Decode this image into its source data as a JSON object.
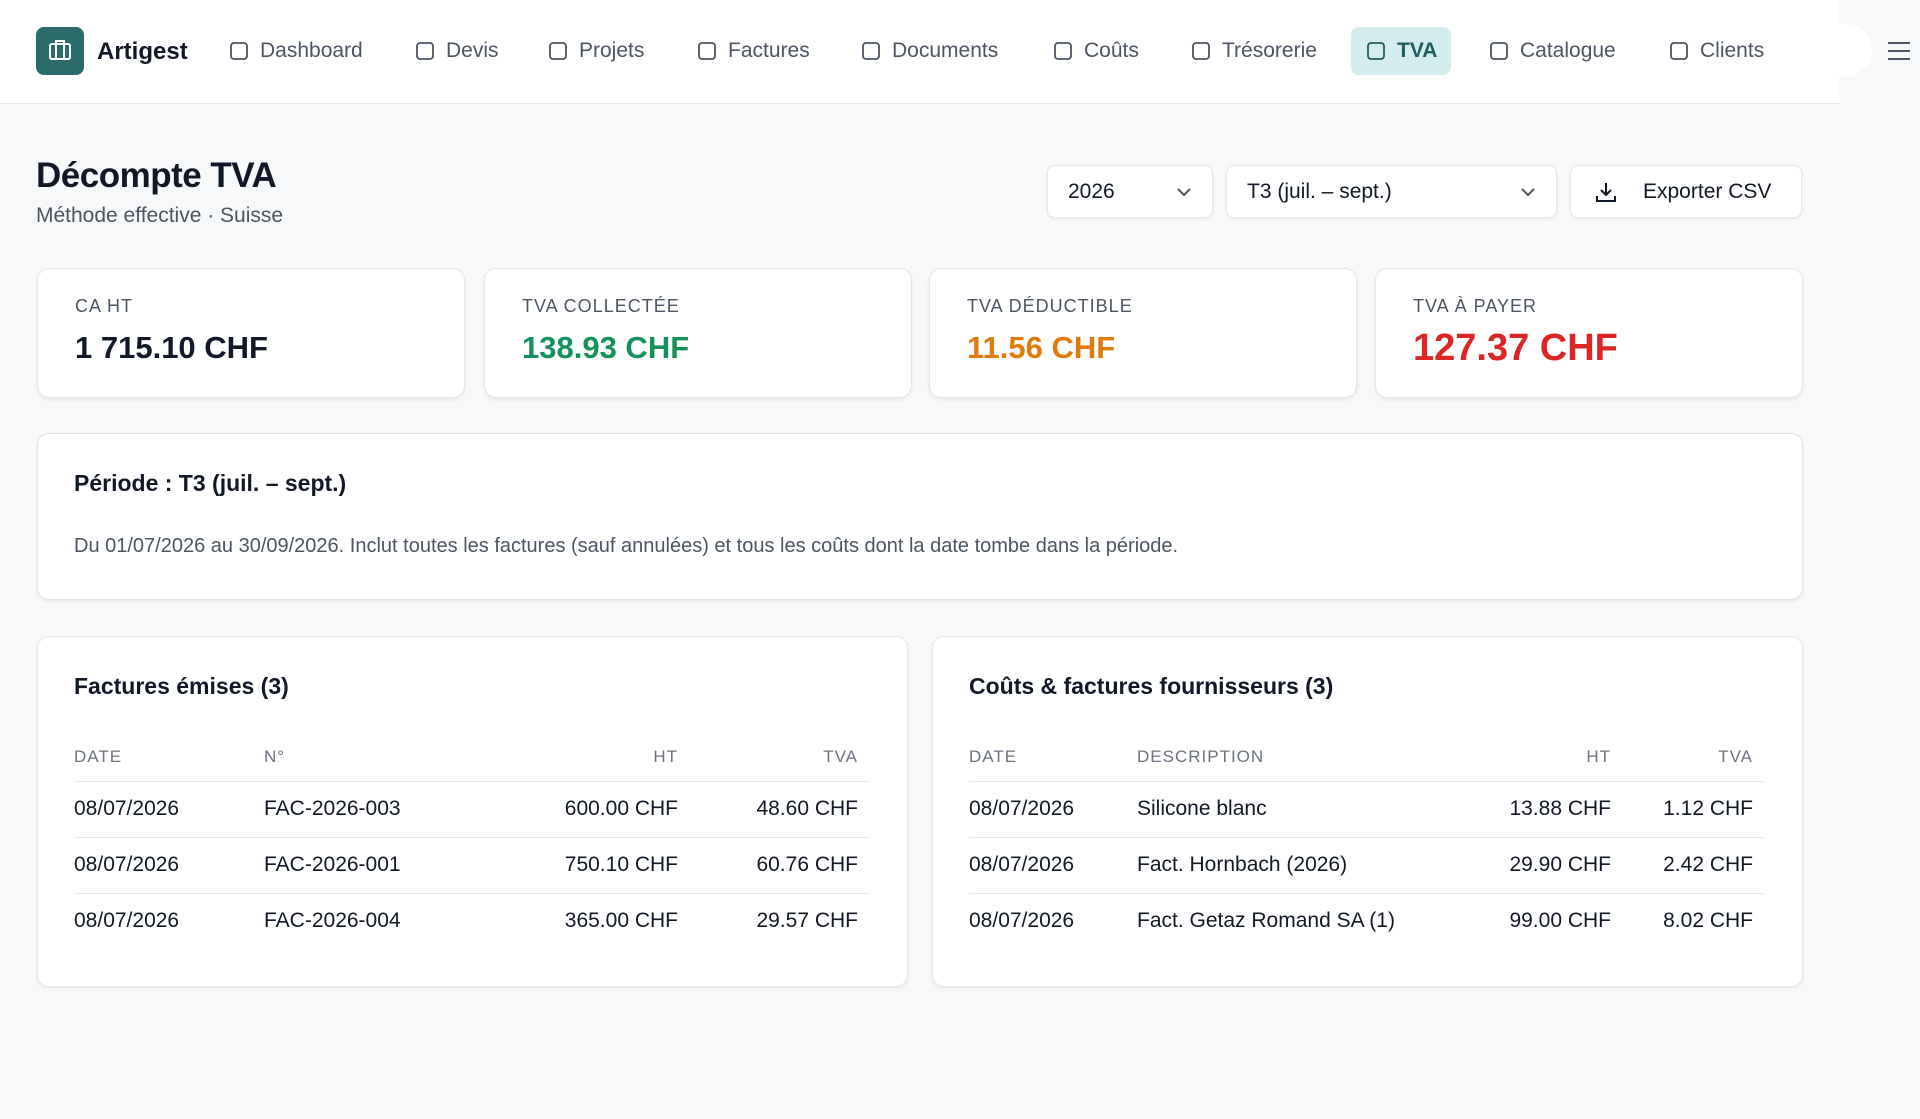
{
  "nav": {
    "brand": "Artigest",
    "items": [
      "Dashboard",
      "Devis",
      "Projets",
      "Factures",
      "Documents",
      "Coûts",
      "Trésorerie",
      "TVA",
      "Catalogue",
      "Clients"
    ],
    "active": 7
  },
  "header": {
    "title": "Décompte TVA",
    "subtitle": "Méthode effective · Suisse"
  },
  "filters": {
    "year": "2026",
    "period": "T3 (juil. – sept.)",
    "export": "Exporter CSV"
  },
  "summary": [
    {
      "label": "CA HT",
      "value": "1 715.10 CHF"
    },
    {
      "label": "TVA COLLECTÉE",
      "value": "138.93 CHF"
    },
    {
      "label": "TVA DÉDUCTIBLE",
      "value": "11.56 CHF"
    },
    {
      "label": "TVA À PAYER",
      "value": "127.37 CHF"
    }
  ],
  "period": {
    "title": "Période : T3 (juil. – sept.)",
    "text": "Du 01/07/2026 au 30/09/2026. Inclut toutes les factures (sauf annulées) et tous les coûts dont la date tombe dans la période."
  },
  "tables": [
    {
      "title": "Factures émises (3)",
      "headers": [
        "DATE",
        "N°",
        "HT",
        "TVA"
      ],
      "rows": [
        [
          "08/07/2026",
          "FAC-2026-003",
          "600.00 CHF",
          "48.60 CHF"
        ],
        [
          "08/07/2026",
          "FAC-2026-001",
          "750.10 CHF",
          "60.76 CHF"
        ],
        [
          "08/07/2026",
          "FAC-2026-004",
          "365.00 CHF",
          "29.57 CHF"
        ]
      ]
    },
    {
      "title": "Coûts & factures fournisseurs (3)",
      "headers": [
        "DATE",
        "DESCRIPTION",
        "HT",
        "TVA"
      ],
      "rows": [
        [
          "08/07/2026",
          "Silicone blanc",
          "13.88 CHF",
          "1.12 CHF"
        ],
        [
          "08/07/2026",
          "Fact. Hornbach (2026)",
          "29.90 CHF",
          "2.42 CHF"
        ],
        [
          "08/07/2026",
          "Fact. Getaz Romand SA (1)",
          "99.00 CHF",
          "8.02 CHF"
        ]
      ]
    }
  ]
}
